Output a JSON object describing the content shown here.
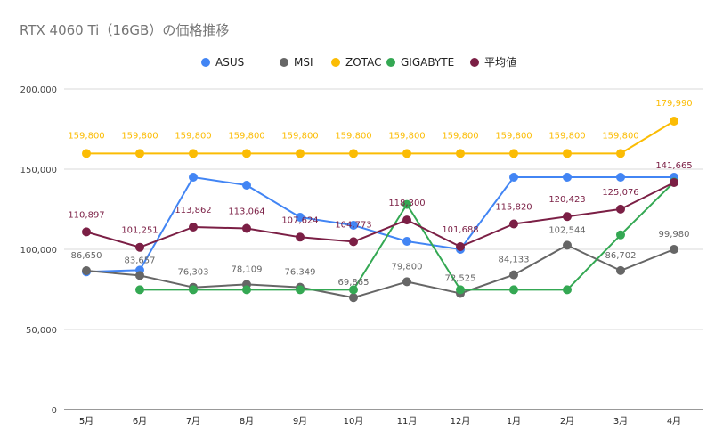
{
  "chart_data": {
    "type": "line",
    "title": "RTX 4060 Ti（16GB）の価格推移",
    "xlabel": "",
    "ylabel": "",
    "categories": [
      "5月",
      "6月",
      "7月",
      "8月",
      "9月",
      "10月",
      "11月",
      "12月",
      "1月",
      "2月",
      "3月",
      "4月"
    ],
    "ylim": [
      0,
      200000
    ],
    "yticks": [
      0,
      50000,
      100000,
      150000,
      200000
    ],
    "ytick_labels": [
      "0",
      "50,000",
      "100,000",
      "150,000",
      "200,000"
    ],
    "grid": true,
    "legend_position": "top",
    "series": [
      {
        "name": "ASUS",
        "color": "#4285f4",
        "values": [
          86000,
          87000,
          145000,
          140000,
          120000,
          115000,
          105000,
          100000,
          145000,
          145000,
          145000,
          145000
        ],
        "labels": [
          null,
          null,
          null,
          null,
          null,
          null,
          null,
          null,
          null,
          null,
          null,
          null
        ]
      },
      {
        "name": "MSI",
        "color": "#666666",
        "values": [
          86650,
          83657,
          76303,
          78109,
          76349,
          69865,
          79800,
          72525,
          84133,
          102544,
          86702,
          99980
        ],
        "labels": [
          "86,650",
          "83,657",
          "76,303",
          "78,109",
          "76,349",
          "69,865",
          "79,800",
          "72,525",
          "84,133",
          "102,544",
          "86,702",
          "99,980"
        ]
      },
      {
        "name": "ZOTAC",
        "color": "#fbbc04",
        "values": [
          159800,
          159800,
          159800,
          159800,
          159800,
          159800,
          159800,
          159800,
          159800,
          159800,
          159800,
          179990
        ],
        "labels": [
          "159,800",
          "159,800",
          "159,800",
          "159,800",
          "159,800",
          "159,800",
          "159,800",
          "159,800",
          "159,800",
          "159,800",
          "159,800",
          "179,990"
        ]
      },
      {
        "name": "GIGABYTE",
        "color": "#34a853",
        "values": [
          null,
          74800,
          74800,
          74800,
          74800,
          74800,
          128000,
          74800,
          74800,
          74800,
          109000,
          142000
        ],
        "labels": [
          null,
          null,
          null,
          null,
          null,
          null,
          null,
          null,
          null,
          null,
          null,
          null
        ]
      },
      {
        "name": "平均値",
        "color": "#7b1f45",
        "values": [
          110897,
          101251,
          113862,
          113064,
          107624,
          104773,
          118300,
          101688,
          115820,
          120423,
          125076,
          141665
        ],
        "labels": [
          "110,897",
          "101,251",
          "113,862",
          "113,064",
          "107,624",
          "104,773",
          "118,300",
          "101,688",
          "115,820",
          "120,423",
          "125,076",
          "141,665"
        ]
      }
    ]
  }
}
